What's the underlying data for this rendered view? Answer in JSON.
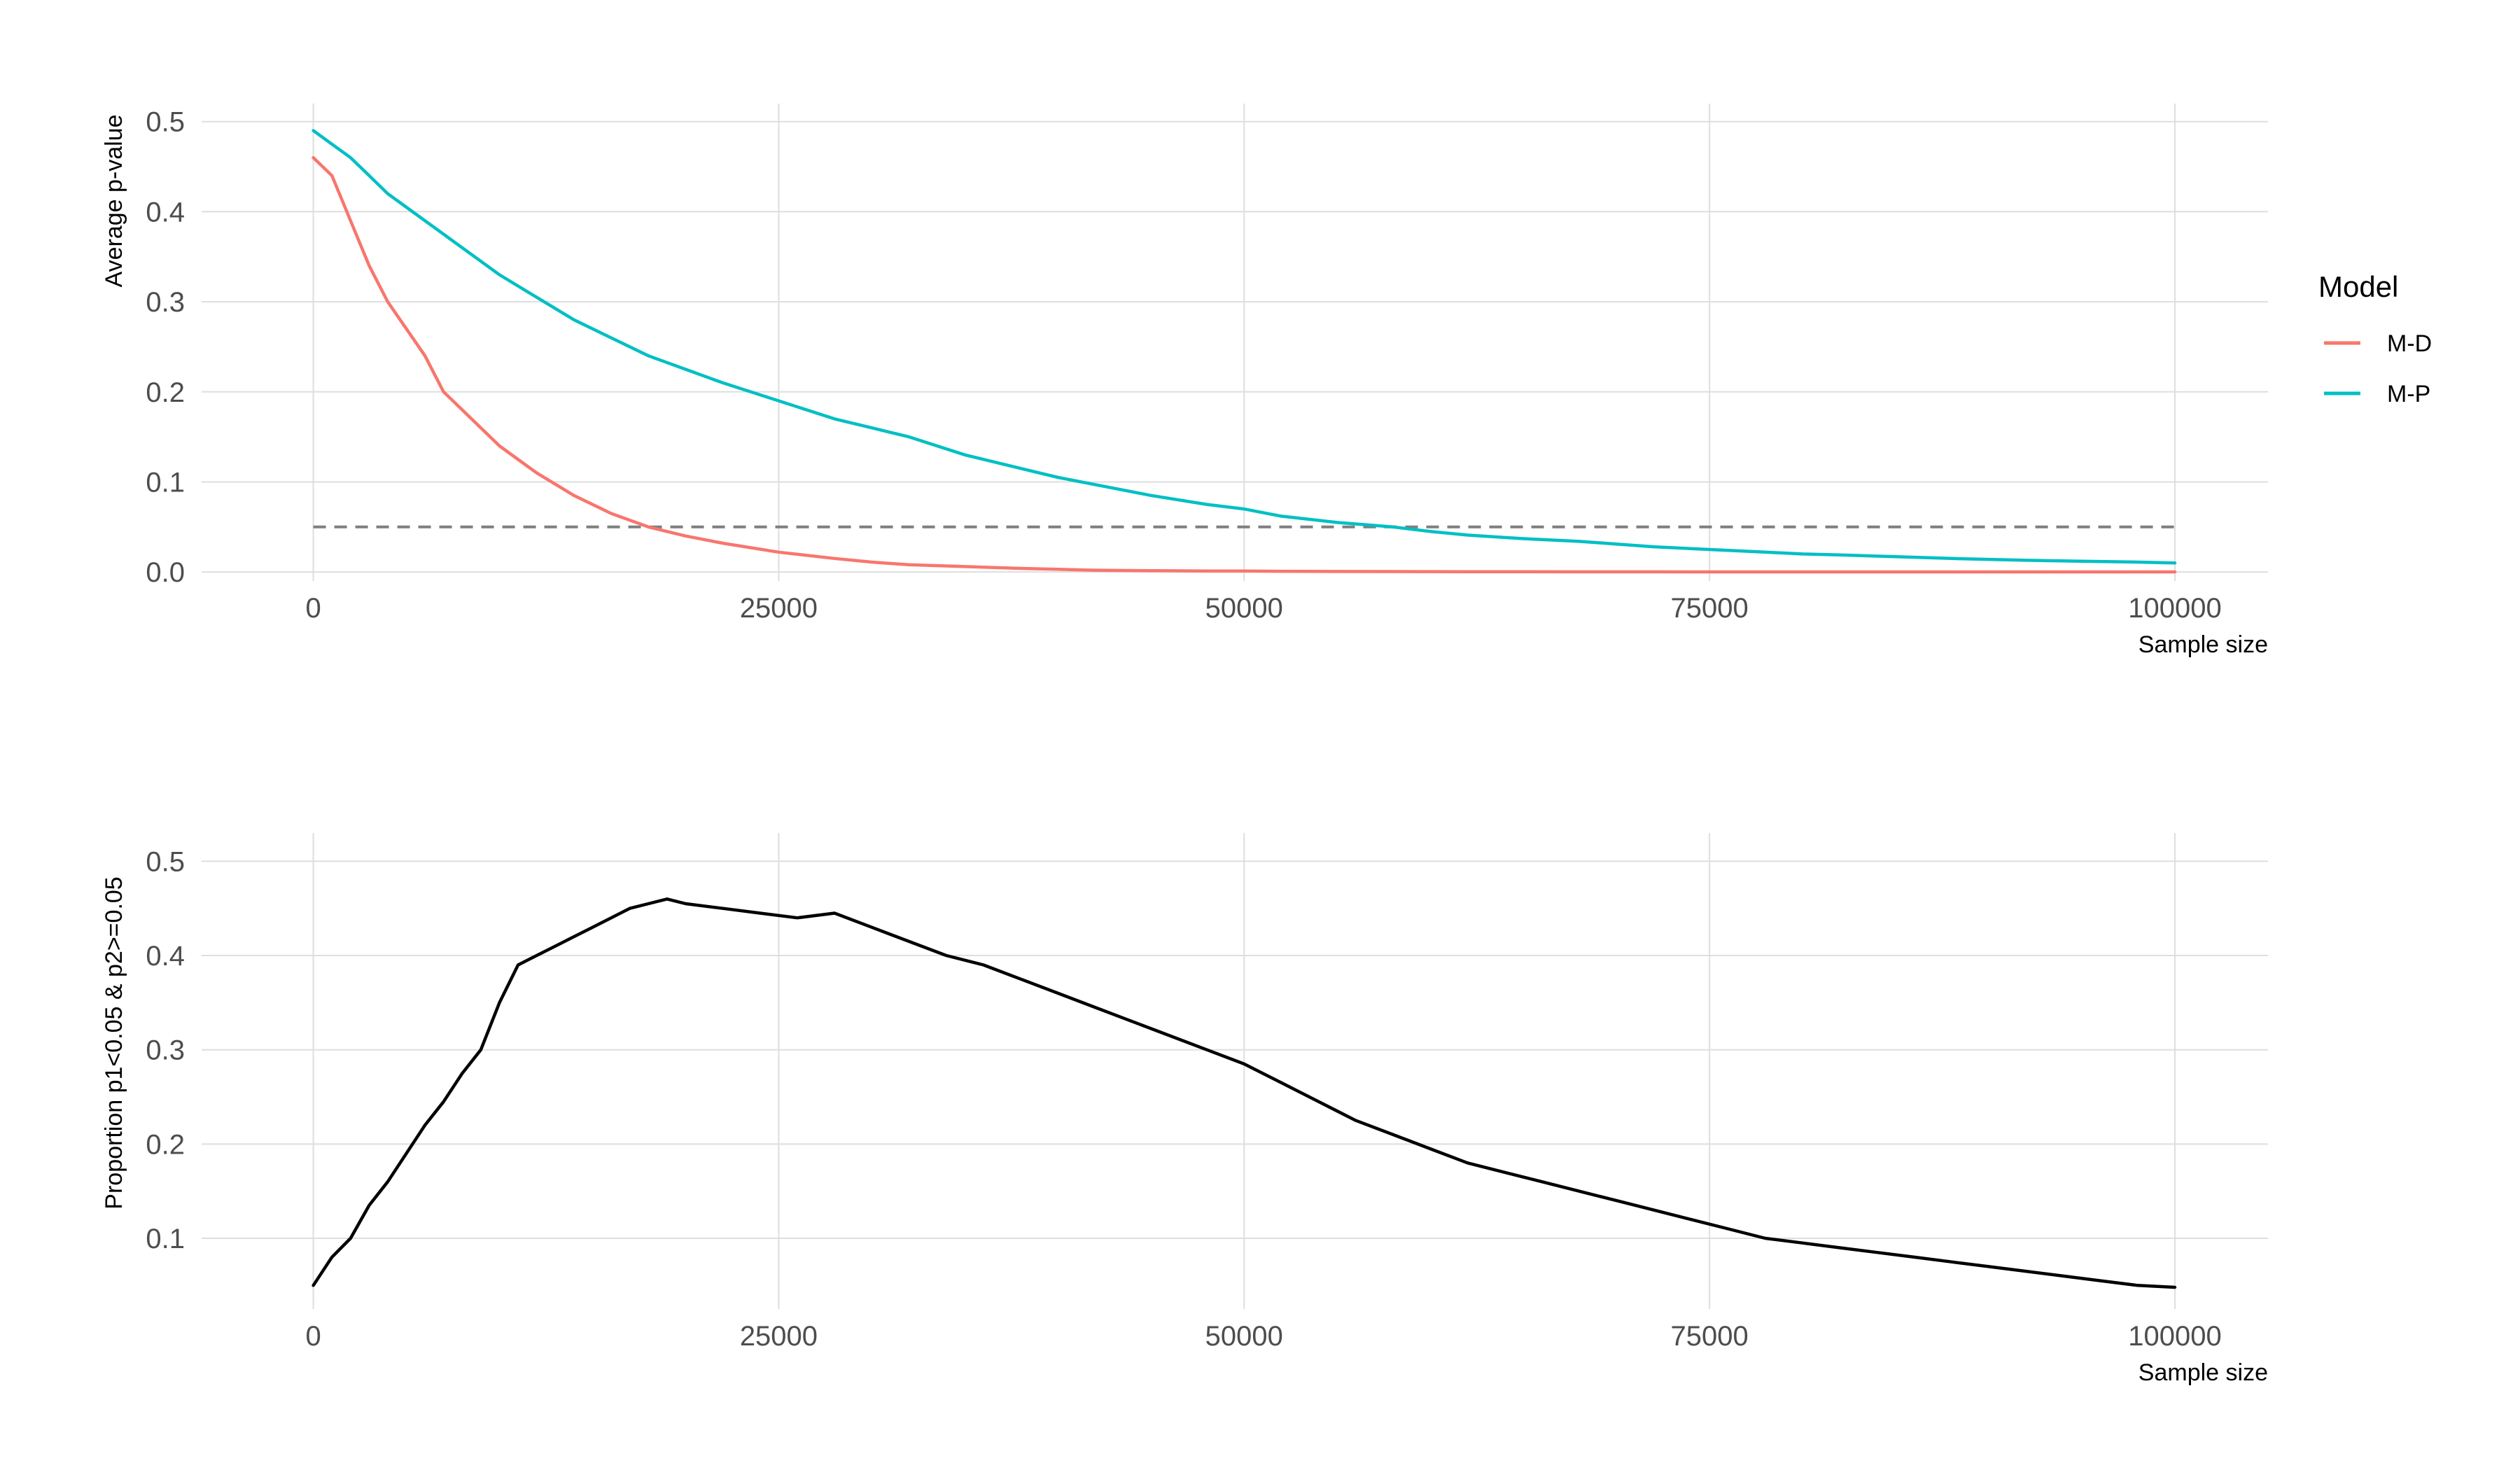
{
  "chart_data": [
    {
      "type": "line",
      "xlabel": "Sample size",
      "ylabel": "Average p-value",
      "xlim": [
        -6000,
        105000
      ],
      "ylim": [
        -0.01,
        0.52
      ],
      "x_ticks": [
        0,
        25000,
        50000,
        75000,
        100000
      ],
      "x_tick_labels": [
        "0",
        "25000",
        "50000",
        "75000",
        "100000"
      ],
      "y_ticks": [
        0,
        0.1,
        0.2,
        0.3,
        0.4,
        0.5
      ],
      "y_tick_labels": [
        "0.0",
        "0.1",
        "0.2",
        "0.3",
        "0.4",
        "0.5"
      ],
      "grid": true,
      "legend": {
        "title": "Model",
        "position": "right"
      },
      "x": [
        0,
        1000,
        2000,
        3000,
        4000,
        5000,
        6000,
        7000,
        8000,
        9000,
        10000,
        12000,
        14000,
        16000,
        18000,
        20000,
        22000,
        25000,
        28000,
        30000,
        32000,
        35000,
        38000,
        40000,
        42000,
        45000,
        48000,
        50000,
        52000,
        55000,
        58000,
        60000,
        62000,
        65000,
        68000,
        70000,
        72000,
        75000,
        78000,
        80000,
        82000,
        85000,
        88000,
        90000,
        92000,
        95000,
        98000,
        100000
      ],
      "series": [
        {
          "name": "M-D",
          "color": "#F8766D",
          "values": [
            0.46,
            0.44,
            0.39,
            0.34,
            0.3,
            0.27,
            0.24,
            0.2,
            0.18,
            0.16,
            0.14,
            0.11,
            0.085,
            0.065,
            0.05,
            0.04,
            0.032,
            0.022,
            0.015,
            0.011,
            0.008,
            0.006,
            0.004,
            0.003,
            0.002,
            0.0015,
            0.001,
            0.001,
            0.0008,
            0.0006,
            0.0005,
            0.0004,
            0.0003,
            0.0003,
            0.0002,
            0.0002,
            0.0002,
            0.0001,
            0.0001,
            0.0001,
            0.0001,
            0.0001,
            0.0001,
            0.0001,
            0.0001,
            0.0001,
            0.0001,
            0.0001
          ]
        },
        {
          "name": "M-P",
          "color": "#00BFC4",
          "values": [
            0.49,
            0.475,
            0.46,
            0.44,
            0.42,
            0.405,
            0.39,
            0.375,
            0.36,
            0.345,
            0.33,
            0.305,
            0.28,
            0.26,
            0.24,
            0.225,
            0.21,
            0.19,
            0.17,
            0.16,
            0.15,
            0.13,
            0.115,
            0.105,
            0.097,
            0.085,
            0.075,
            0.07,
            0.062,
            0.055,
            0.05,
            0.045,
            0.041,
            0.037,
            0.034,
            0.031,
            0.028,
            0.025,
            0.022,
            0.02,
            0.019,
            0.017,
            0.015,
            0.014,
            0.013,
            0.012,
            0.011,
            0.01
          ]
        }
      ],
      "reference_line": {
        "y": 0.05,
        "style": "dashed",
        "color": "#7f7f7f"
      }
    },
    {
      "type": "line",
      "xlabel": "Sample size",
      "ylabel": "Proportion p1<0.05 & p2>=0.05",
      "xlim": [
        -6000,
        105000
      ],
      "ylim": [
        0.025,
        0.53
      ],
      "x_ticks": [
        0,
        25000,
        50000,
        75000,
        100000
      ],
      "x_tick_labels": [
        "0",
        "25000",
        "50000",
        "75000",
        "100000"
      ],
      "y_ticks": [
        0.1,
        0.2,
        0.3,
        0.4,
        0.5
      ],
      "y_tick_labels": [
        "0.1",
        "0.2",
        "0.3",
        "0.4",
        "0.5"
      ],
      "grid": true,
      "x": [
        0,
        1000,
        2000,
        3000,
        4000,
        5000,
        6000,
        7000,
        8000,
        9000,
        10000,
        11000,
        12000,
        13000,
        14000,
        15000,
        16000,
        17000,
        18000,
        19000,
        20000,
        22000,
        24000,
        26000,
        28000,
        30000,
        32000,
        34000,
        36000,
        38000,
        40000,
        42000,
        44000,
        46000,
        48000,
        50000,
        52000,
        54000,
        56000,
        58000,
        60000,
        62000,
        64000,
        66000,
        68000,
        70000,
        72000,
        74000,
        76000,
        78000,
        80000,
        82000,
        84000,
        86000,
        88000,
        90000,
        92000,
        94000,
        96000,
        98000,
        100000
      ],
      "series": [
        {
          "name": "",
          "color": "#000000",
          "values": [
            0.05,
            0.08,
            0.1,
            0.135,
            0.16,
            0.19,
            0.22,
            0.245,
            0.275,
            0.3,
            0.35,
            0.39,
            0.4,
            0.41,
            0.42,
            0.43,
            0.44,
            0.45,
            0.455,
            0.46,
            0.455,
            0.45,
            0.445,
            0.44,
            0.445,
            0.43,
            0.415,
            0.4,
            0.39,
            0.375,
            0.36,
            0.345,
            0.33,
            0.315,
            0.3,
            0.285,
            0.265,
            0.245,
            0.225,
            0.21,
            0.195,
            0.18,
            0.17,
            0.16,
            0.15,
            0.14,
            0.13,
            0.12,
            0.11,
            0.1,
            0.095,
            0.09,
            0.085,
            0.08,
            0.075,
            0.07,
            0.065,
            0.06,
            0.055,
            0.05,
            0.048
          ]
        }
      ]
    }
  ]
}
